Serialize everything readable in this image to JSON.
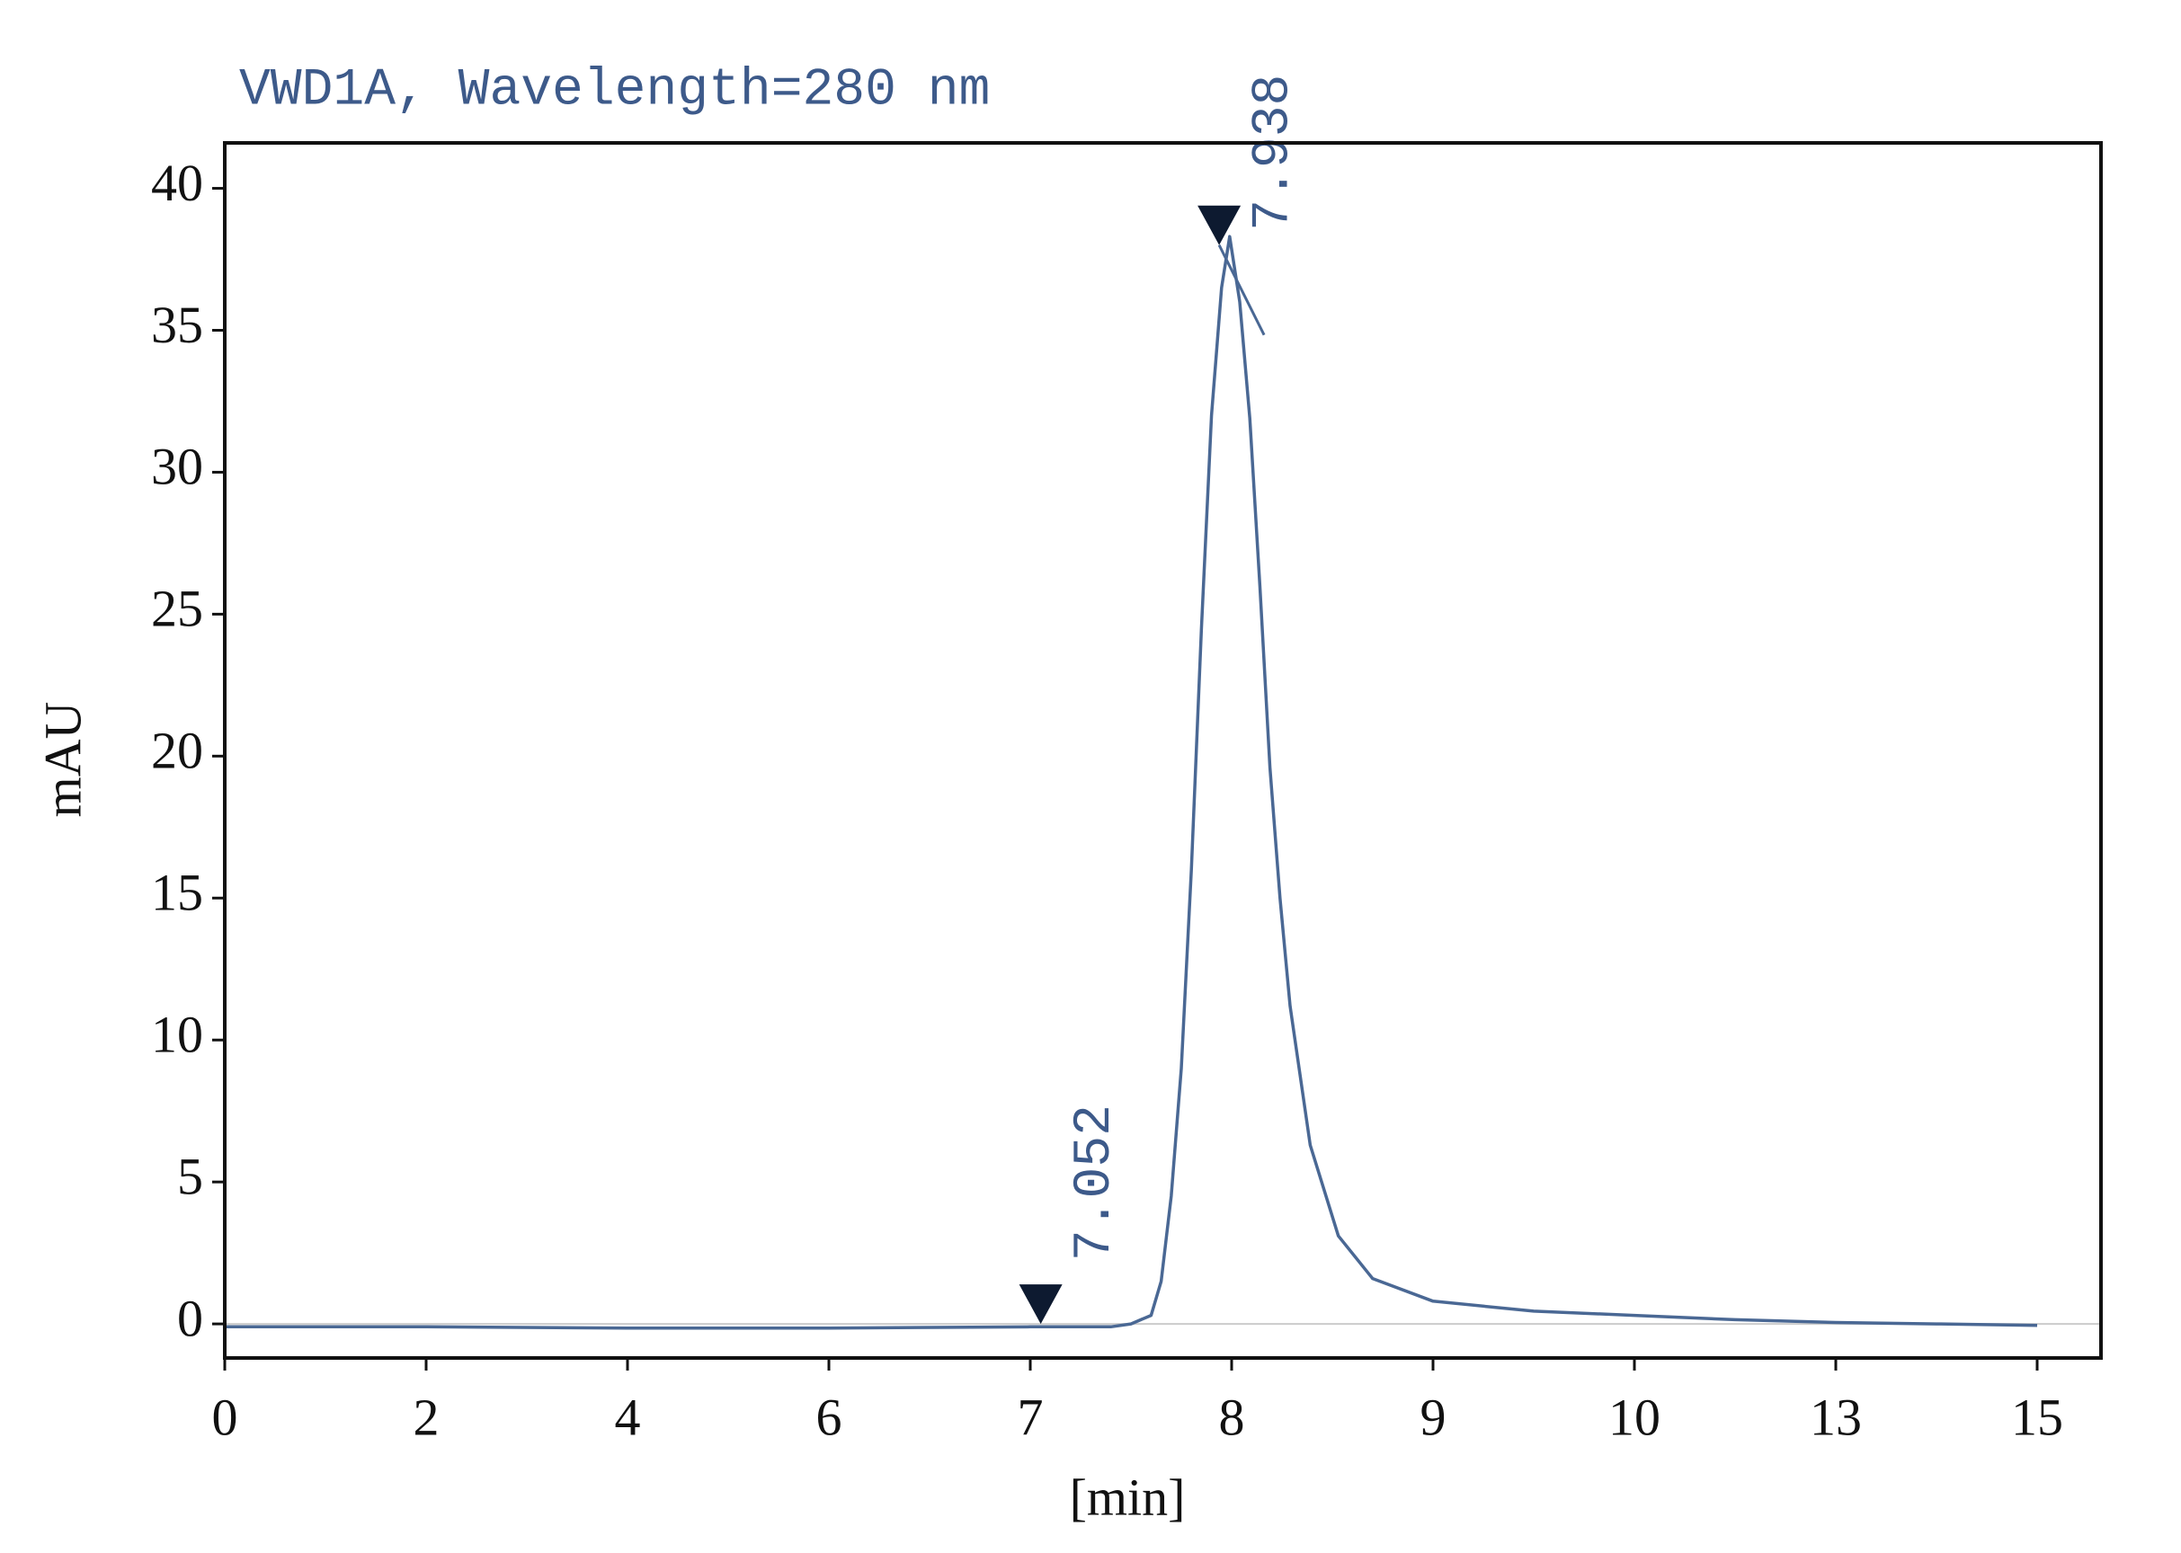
{
  "chart_data": {
    "type": "line",
    "title": "VWD1A, Wavelength=280 nm",
    "xlabel": "[min]",
    "ylabel": "mAU",
    "x": [
      0,
      2,
      4,
      6,
      7,
      7.4,
      7.5,
      7.6,
      7.65,
      7.7,
      7.75,
      7.8,
      7.85,
      7.9,
      7.95,
      7.99,
      8.04,
      8.09,
      8.14,
      8.19,
      8.24,
      8.29,
      8.39,
      8.53,
      8.7,
      9,
      9.5,
      10,
      11.5,
      13,
      14,
      15
    ],
    "values": [
      -0.1,
      -0.1,
      -0.15,
      -0.15,
      -0.1,
      -0.1,
      0,
      0.3,
      1.5,
      4.5,
      9,
      16,
      24.5,
      32,
      36.5,
      38.3,
      36,
      31.9,
      26,
      19.6,
      15,
      11.2,
      6.3,
      3.1,
      1.6,
      0.8,
      0.45,
      0.3,
      0.15,
      0.05,
      0,
      -0.05
    ],
    "color": "#4a6894",
    "ylim": [
      -1.2,
      41.6
    ],
    "yticks": [
      0,
      5,
      10,
      15,
      20,
      25,
      30,
      35,
      40
    ],
    "xticks": [
      0,
      2,
      4,
      6,
      7,
      8,
      9,
      10,
      13,
      15
    ],
    "annotations": [
      {
        "x": 7.052,
        "y": 0
      },
      {
        "x": 7.938,
        "y": 38
      }
    ]
  }
}
